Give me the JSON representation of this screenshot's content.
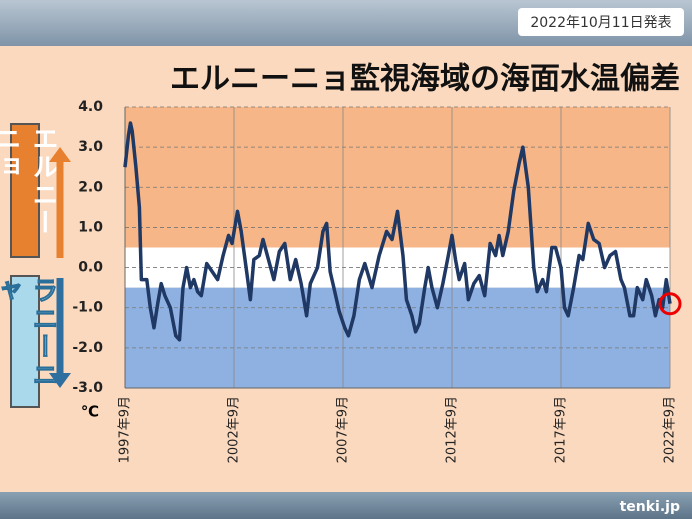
{
  "chart_data": {
    "type": "line",
    "title": "エルニーニョ監視海域の海面水温偏差",
    "date_note": "2022年10月11日発表",
    "el_nino_label": "エルニーニョ",
    "la_nina_label": "ラニーニャ",
    "y_unit": "℃",
    "source": "tenki.jp",
    "el_nino_threshold": 0.5,
    "la_nina_threshold": -0.5,
    "color": "#1f3864",
    "x": [
      1997.67,
      1997.83,
      1997.92,
      1998.0,
      1998.17,
      1998.33,
      1998.42,
      1998.67,
      1998.83,
      1999.0,
      1999.17,
      1999.33,
      1999.5,
      1999.75,
      2000.0,
      2000.17,
      2000.33,
      2000.5,
      2000.67,
      2000.83,
      2001.0,
      2001.17,
      2001.42,
      2001.67,
      2001.92,
      2002.17,
      2002.42,
      2002.58,
      2002.83,
      2003.0,
      2003.25,
      2003.42,
      2003.58,
      2003.83,
      2004.0,
      2004.25,
      2004.5,
      2004.75,
      2005.0,
      2005.25,
      2005.5,
      2005.75,
      2006.0,
      2006.17,
      2006.5,
      2006.75,
      2006.92,
      2007.08,
      2007.25,
      2007.5,
      2007.75,
      2007.92,
      2008.17,
      2008.42,
      2008.67,
      2009.0,
      2009.33,
      2009.67,
      2009.92,
      2010.17,
      2010.42,
      2010.58,
      2010.83,
      2011.0,
      2011.17,
      2011.42,
      2011.58,
      2011.75,
      2012.0,
      2012.25,
      2012.5,
      2012.67,
      2012.83,
      2013.0,
      2013.25,
      2013.42,
      2013.67,
      2013.92,
      2014.17,
      2014.42,
      2014.67,
      2014.83,
      2015.0,
      2015.25,
      2015.5,
      2015.75,
      2015.92,
      2016.17,
      2016.42,
      2016.58,
      2016.83,
      2017.0,
      2017.25,
      2017.42,
      2017.67,
      2017.83,
      2018.0,
      2018.25,
      2018.5,
      2018.67,
      2018.92,
      2019.17,
      2019.42,
      2019.67,
      2019.92,
      2020.17,
      2020.42,
      2020.58,
      2020.83,
      2021.0,
      2021.17,
      2021.42,
      2021.58,
      2021.83,
      2022.0,
      2022.17,
      2022.33,
      2022.5,
      2022.67
    ],
    "values": [
      2.5,
      3.3,
      3.6,
      3.4,
      2.5,
      1.5,
      -0.3,
      -0.3,
      -1.0,
      -1.5,
      -0.9,
      -0.4,
      -0.7,
      -1.0,
      -1.7,
      -1.8,
      -0.5,
      0.0,
      -0.5,
      -0.3,
      -0.6,
      -0.7,
      0.1,
      -0.1,
      -0.3,
      0.3,
      0.8,
      0.6,
      1.4,
      0.9,
      -0.1,
      -0.8,
      0.2,
      0.3,
      0.7,
      0.2,
      -0.3,
      0.4,
      0.6,
      -0.3,
      0.2,
      -0.4,
      -1.2,
      -0.4,
      0.0,
      0.9,
      1.1,
      -0.1,
      -0.5,
      -1.1,
      -1.5,
      -1.7,
      -1.2,
      -0.3,
      0.1,
      -0.5,
      0.3,
      0.9,
      0.7,
      1.4,
      0.3,
      -0.8,
      -1.2,
      -1.6,
      -1.4,
      -0.5,
      0.0,
      -0.5,
      -1.0,
      -0.4,
      0.3,
      0.8,
      0.2,
      -0.3,
      0.1,
      -0.8,
      -0.4,
      -0.2,
      -0.7,
      0.6,
      0.3,
      0.8,
      0.3,
      0.9,
      1.9,
      2.6,
      3.0,
      2.0,
      0.0,
      -0.6,
      -0.3,
      -0.6,
      0.5,
      0.5,
      0.0,
      -1.0,
      -1.2,
      -0.5,
      0.3,
      0.2,
      1.1,
      0.7,
      0.6,
      0.0,
      0.3,
      0.4,
      -0.3,
      -0.5,
      -1.2,
      -1.2,
      -0.5,
      -0.8,
      -0.3,
      -0.7,
      -1.2,
      -0.8,
      -1.0,
      -0.3,
      -0.9
    ],
    "xlim": [
      1997.67,
      2022.67
    ],
    "xticks": [
      {
        "value": 1997.67,
        "label": "1997年9月"
      },
      {
        "value": 2002.67,
        "label": "2002年9月"
      },
      {
        "value": 2007.67,
        "label": "2007年9月"
      },
      {
        "value": 2012.67,
        "label": "2012年9月"
      },
      {
        "value": 2017.67,
        "label": "2017年9月"
      },
      {
        "value": 2022.67,
        "label": "2022年9月"
      }
    ],
    "ylim": [
      -3.0,
      4.0
    ],
    "yticks": [
      {
        "value": 4,
        "label": "4.0"
      },
      {
        "value": 3,
        "label": "3.0"
      },
      {
        "value": 2,
        "label": "2.0"
      },
      {
        "value": 1,
        "label": "1.0"
      },
      {
        "value": 0,
        "label": "0.0"
      },
      {
        "value": -1,
        "label": "-1.0"
      },
      {
        "value": -2,
        "label": "-2.0"
      },
      {
        "value": -3,
        "label": "-3.0"
      }
    ],
    "grid": true
  }
}
